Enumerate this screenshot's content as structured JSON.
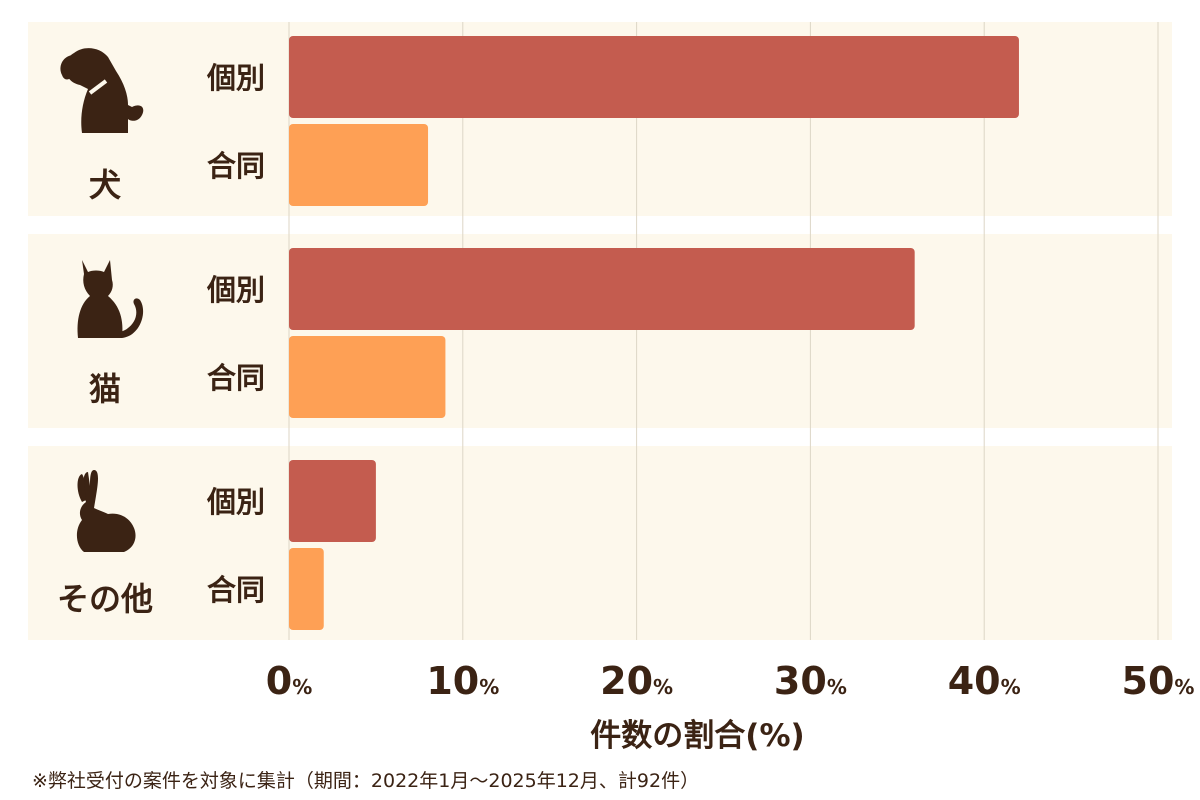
{
  "chart_data": {
    "type": "bar",
    "orientation": "horizontal",
    "groups": [
      {
        "label": "犬",
        "icon": "dog-icon"
      },
      {
        "label": "猫",
        "icon": "cat-icon"
      },
      {
        "label": "その他",
        "icon": "rabbit-icon"
      }
    ],
    "categories": [
      "犬",
      "猫",
      "その他"
    ],
    "series": [
      {
        "name": "個別",
        "color": "#c45c4f",
        "values": [
          42,
          36,
          5
        ]
      },
      {
        "name": "合同",
        "color": "#fea055",
        "values": [
          8,
          9,
          2
        ]
      }
    ],
    "xlim": [
      0,
      50
    ],
    "x_ticks": [
      0,
      10,
      20,
      30,
      40,
      50
    ],
    "tick_suffix": "%",
    "xlabel": "件数の割合(%)",
    "grid": true,
    "legend": "none"
  },
  "footnote": "※弊社受付の案件を対象に集計（期間：2022年1月〜2025年12月、計92件）",
  "colors": {
    "panel_background": "#fdf8ec",
    "text": "#3b2314",
    "gridline": "#ddd6c6"
  }
}
